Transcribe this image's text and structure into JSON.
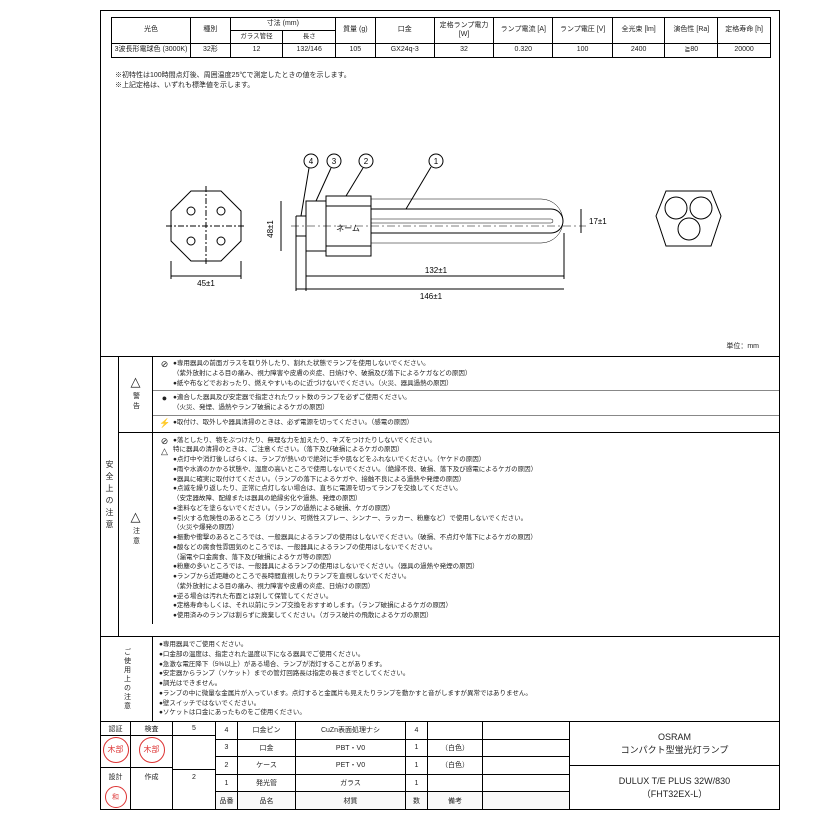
{
  "spec_table": {
    "headers1": [
      "光色",
      "種別",
      "寸法 (mm)",
      "",
      "質量 (g)",
      "口金",
      "定格ランプ電力 [W]",
      "ランプ電流 [A]",
      "ランプ電圧 [V]",
      "全光束 [lm]",
      "演色性 [Ra]",
      "定格寿命 [h]"
    ],
    "headers2": [
      "",
      "",
      "ガラス管径",
      "長さ",
      "",
      "",
      "",
      "",
      "",
      "",
      "",
      ""
    ],
    "row": [
      "3波長形電球色 (3000K)",
      "32形",
      "12",
      "132/146",
      "105",
      "GX24q-3",
      "32",
      "0.320",
      "100",
      "2400",
      "≧80",
      "20000"
    ]
  },
  "notes": [
    "※初特性は100時間点灯後、周囲温度25℃で測定したときの値を示します。",
    "※上記定格は、いずれも標準値を示します。"
  ],
  "diagram": {
    "callouts": [
      "4",
      "3",
      "2",
      "1"
    ],
    "socket_w": "45±1",
    "socket_h": "48±1",
    "tube_h": "17±1",
    "length1": "132±1",
    "length2": "146±1",
    "name_label": "ネーム",
    "unit": "単位：mm"
  },
  "warnings": {
    "side_label": "安全上の注意",
    "keikoku": {
      "label": "警告",
      "lines": [
        {
          "sym": "⊘",
          "t": "●専用器具の前面ガラスを取り外したり、割れた状態でランプを使用しないでください。\n（紫外放射による目の痛み、視力障害や皮膚の炎症、日焼けや、破損及び落下によるケガなどの原因）\n●紙や布などでおおったり、燃えやすいものに近づけないでください。（火災、器具過熱の原因）"
        },
        {
          "sym": "●",
          "t": "●適合した器具及び安定器で指定されたワット数のランプを必ずご使用ください。\n（火災、発煙、過熱やランプ破損によるケガの原因）"
        },
        {
          "sym": "⚡",
          "t": "●取付け、取外しや器具清掃のときは、必ず電源を切ってください。（感電の原因）"
        }
      ]
    },
    "chuui": {
      "label": "注意",
      "lines": [
        "●落としたり、物をぶつけたり、無理な力を加えたり、キズをつけたりしないでください。",
        "特に器具の清掃のときは、ご注意ください。（落下及び破損によるケガの原因）",
        "●点灯中や消灯後しばらくは、ランプが熱いので絶対に手や肌などをふれないでください。（ヤケドの原因）",
        "●雨や水滴のかかる状態や、湿度の高いところで使用しないでください。（絶縁不良、破損、落下及び感電によるケガの原因）",
        "●器具に確実に取付けてください。（ランプの落下によるケガや、接触不良による過熱や発煙の原因）",
        "●点滅を繰り返したり、正常に点灯しない場合は、直ちに電源を切ってランプを交換してください。",
        "（安定器故障、配線または器具の絶縁劣化や過熱、発煙の原因）",
        "●塗料などを塗らないでください。（ランプの過熱による破損、ケガの原因）",
        "●引火する危険性のあるところ（ガソリン、可燃性スプレー、シンナー、ラッカー、粉塵など）で使用しないでください。",
        "（火災や爆発の原因）",
        "●振動や衝撃のあるところでは、一般器具によるランプの使用はしないでください。（破損、不点灯や落下によるケガの原因）",
        "●酸などの腐食性雰囲気のところでは、一般器具によるランプの使用はしないでください。",
        "（漏電や口金腐食、落下及び破損によるケガ等の原因）",
        "●粉塵の多いところでは、一般器具によるランプの使用はしないでください。（器具の過熱や発煙の原因）",
        "●ランプから近距離のところで長時間直視したりランプを直視しないでください。",
        "（紫外放射による目の痛み、視力障害や皮膚の炎症、日焼けの原因）",
        "●逆る場合は汚れた布面とは別して保管してください。",
        "●定格寿命もしくは、それ以前にランプ交換をおすすめします。（ランプ破損によるケガの原因）",
        "●使用済みのランプは割らずに廃棄してください。（ガラス破片の飛散によるケガの原因）"
      ]
    },
    "usage": {
      "label": "ご使用上の注意",
      "lines": [
        "●専用器具でご使用ください。",
        "●口金部の温度は、指定された温度以下になる器具でご使用ください。",
        "●急激な電圧降下（5%以上）がある場合、ランプが消灯することがあります。",
        "●安定器からランプ（ソケット）までの管灯回路長は指定の長さまでとしてください。",
        "●調光はできません。",
        "●ランプの中に微量な金属片が入っています。点灯すると金属片も見えたりランプを動かすと音がしますが異常ではありません。",
        "●壁スイッチではないでください。",
        "●ソケットは口金にあったものをご使用ください。"
      ]
    }
  },
  "title_block": {
    "left_headers": [
      "認証",
      "検査",
      "5"
    ],
    "stamp1": "木部",
    "stamp2": "木部",
    "stamp3": "和",
    "left2": [
      "作成",
      "2"
    ],
    "left3": [
      "設計"
    ],
    "parts": [
      {
        "num": "4",
        "name": "口金ピン",
        "mat": "CuZn表面処理ナシ",
        "qty": "4",
        "note": ""
      },
      {
        "num": "3",
        "name": "口金",
        "mat": "PBT・V0",
        "qty": "1",
        "note": "（白色）"
      },
      {
        "num": "2",
        "name": "ケース",
        "mat": "PET・V0",
        "qty": "1",
        "note": "（白色）"
      },
      {
        "num": "1",
        "name": "発光管",
        "mat": "ガラス",
        "qty": "1",
        "note": ""
      }
    ],
    "parts_hdr": {
      "num": "品番",
      "name": "品名",
      "mat": "材質",
      "qty": "数",
      "note": "備考"
    },
    "right": [
      "OSRAM\nコンパクト型蛍光灯ランプ",
      "DULUX T/E PLUS 32W/830\n（FHT32EX-L）"
    ]
  }
}
